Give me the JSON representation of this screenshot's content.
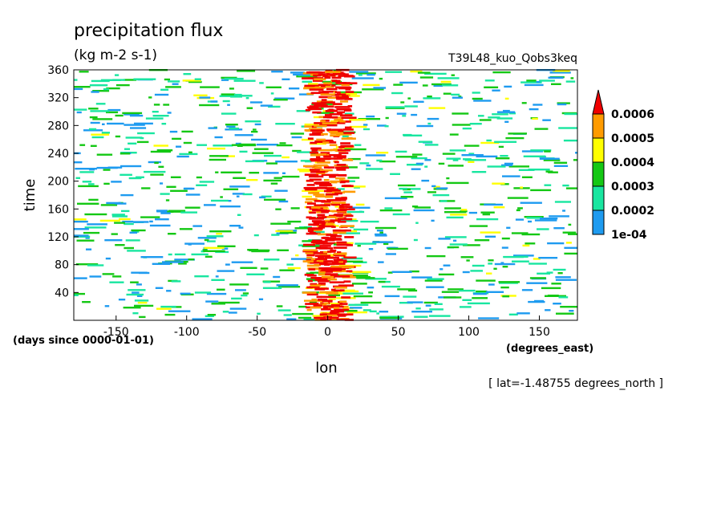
{
  "chart_data": {
    "type": "heatmap",
    "title": "precipitation flux",
    "units": "(kg m-2 s-1)",
    "run_label": "T39L48_kuo_Qobs3keq",
    "xlabel": "lon",
    "x_units": "(degrees_east)",
    "ylabel": "time",
    "y_units": "(days since 0000-01-01)",
    "slice_note": "[ lat=-1.48755 degrees_north ]",
    "xlim": [
      -180,
      177
    ],
    "ylim": [
      0,
      360
    ],
    "x_ticks": [
      -150,
      -100,
      -50,
      0,
      50,
      100,
      150
    ],
    "y_ticks": [
      40,
      80,
      120,
      160,
      200,
      240,
      280,
      320,
      360
    ],
    "colorbar": {
      "levels": [
        "1e-04",
        "0.0002",
        "0.0003",
        "0.0004",
        "0.0005",
        "0.0006"
      ],
      "colors": [
        "#1e9bf0",
        "#19e6a0",
        "#14c814",
        "#ffff00",
        "#ff9b00",
        "#f00000"
      ],
      "extend": "max"
    },
    "pattern": "intense precipitation band near lon 0 from day 0 to 360; scattered weaker streaks elsewhere"
  }
}
